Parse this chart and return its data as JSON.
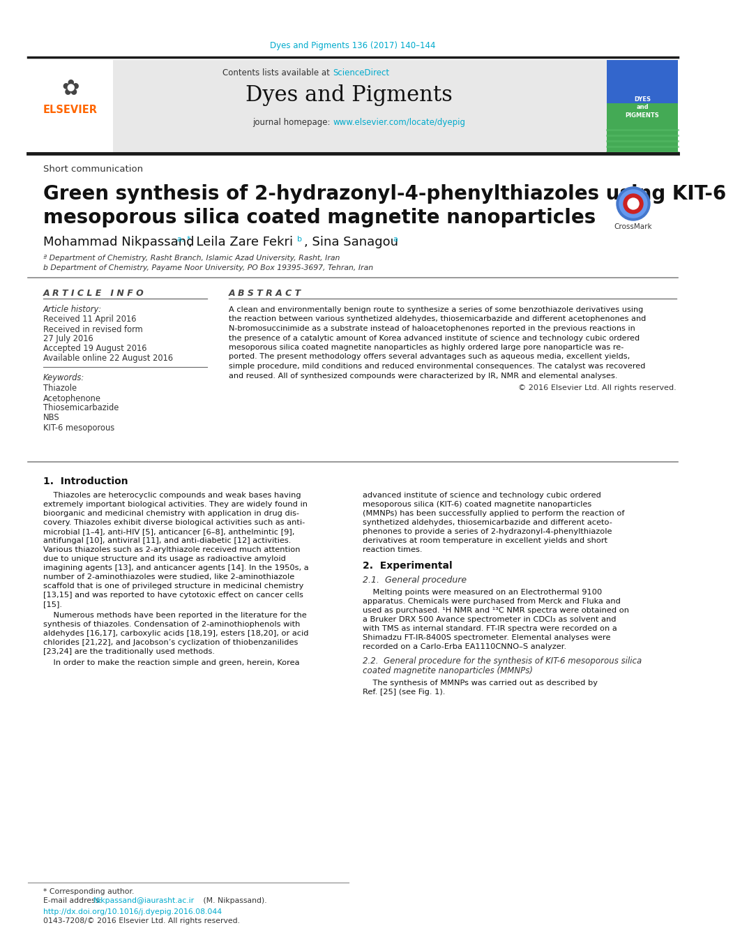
{
  "page_bg": "#ffffff",
  "header_journal_line": "Dyes and Pigments 136 (2017) 140–144",
  "header_journal_color": "#00aacc",
  "journal_name": "Dyes and Pigments",
  "contents_text": "Contents lists available at ",
  "sciencedirect_text": "ScienceDirect",
  "sciencedirect_color": "#00aacc",
  "homepage_text": "journal homepage: ",
  "homepage_url": "www.elsevier.com/locate/dyepig",
  "homepage_url_color": "#00aacc",
  "section_type": "Short communication",
  "article_title_line1": "Green synthesis of 2-hydrazonyl-4-phenylthiazoles using KIT-6",
  "article_title_line2": "mesoporous silica coated magnetite nanoparticles",
  "affiliation_a": "ª Department of Chemistry, Rasht Branch, Islamic Azad University, Rasht, Iran",
  "affiliation_b": "b Department of Chemistry, Payame Noor University, PO Box 19395-3697, Tehran, Iran",
  "article_info_header": "A R T I C L E   I N F O",
  "abstract_header": "A B S T R A C T",
  "article_history_label": "Article history:",
  "received_1": "Received 11 April 2016",
  "received_revised": "Received in revised form",
  "revised_date": "27 July 2016",
  "accepted": "Accepted 19 August 2016",
  "available": "Available online 22 August 2016",
  "keywords_label": "Keywords:",
  "keywords": [
    "Thiazole",
    "Acetophenone",
    "Thiosemicarbazide",
    "NBS",
    "KIT-6 mesoporous"
  ],
  "copyright": "© 2016 Elsevier Ltd. All rights reserved.",
  "intro_header": "1.  Introduction",
  "experimental_header": "2.  Experimental",
  "general_proc_header": "2.1.  General procedure",
  "kit6_proc_header": "2.2.  General procedure for the synthesis of KIT-6 mesoporous silica",
  "kit6_proc_header2": "coated magnetite nanoparticles (MMNPs)",
  "kit6_proc_text1": "    The synthesis of MMNPs was carried out as described by",
  "kit6_proc_text2": "Ref. [25] (see Fig. 1).",
  "footer_corresponding": "* Corresponding author.",
  "footer_email_label": "E-mail address: ",
  "footer_email": "Nikpassand@iaurasht.ac.ir",
  "footer_email_color": "#00aacc",
  "footer_email_suffix": " (M. Nikpassand).",
  "footer_doi": "http://dx.doi.org/10.1016/j.dyepig.2016.08.044",
  "footer_doi_color": "#00aacc",
  "footer_copyright": "0143-7208/© 2016 Elsevier Ltd. All rights reserved.",
  "header_bg": "#e8e8e8",
  "thick_line_color": "#1a1a1a",
  "elsevier_color": "#ff6600",
  "link_color": "#00aacc",
  "abstract_lines": [
    "A clean and environmentally benign route to synthesize a series of some benzothiazole derivatives using",
    "the reaction between various synthetized aldehydes, thiosemicarbazide and different acetophenones and",
    "N-bromosuccinimide as a substrate instead of haloacetophenones reported in the previous reactions in",
    "the presence of a catalytic amount of Korea advanced institute of science and technology cubic ordered",
    "mesoporous silica coated magnetite nanoparticles as highly ordered large pore nanoparticle was re-",
    "ported. The present methodology offers several advantages such as aqueous media, excellent yields,",
    "simple procedure, mild conditions and reduced environmental consequences. The catalyst was recovered",
    "and reused. All of synthesized compounds were characterized by IR, NMR and elemental analyses."
  ],
  "intro_p1_lines": [
    "    Thiazoles are heterocyclic compounds and weak bases having",
    "extremely important biological activities. They are widely found in",
    "bioorganic and medicinal chemistry with application in drug dis-",
    "covery. Thiazoles exhibit diverse biological activities such as anti-",
    "microbial [1–4], anti-HIV [5], anticancer [6–8], anthelmintic [9],",
    "antifungal [10], antiviral [11], and anti-diabetic [12] activities.",
    "Various thiazoles such as 2-arylthiazole received much attention",
    "due to unique structure and its usage as radioactive amyloid",
    "imagining agents [13], and anticancer agents [14]. In the 1950s, a",
    "number of 2-aminothiazoles were studied, like 2-aminothiazole",
    "scaffold that is one of privileged structure in medicinal chemistry",
    "[13,15] and was reported to have cytotoxic effect on cancer cells",
    "[15]."
  ],
  "intro_p2_lines": [
    "    Numerous methods have been reported in the literature for the",
    "synthesis of thiazoles. Condensation of 2-aminothiophenols with",
    "aldehydes [16,17], carboxylic acids [18,19], esters [18,20], or acid",
    "chlorides [21,22], and Jacobson’s cyclization of thiobenzanilides",
    "[23,24] are the traditionally used methods."
  ],
  "intro_p3": "    In order to make the reaction simple and green, herein, Korea",
  "right_intro_lines": [
    "advanced institute of science and technology cubic ordered",
    "mesoporous silica (KIT-6) coated magnetite nanoparticles",
    "(MMNPs) has been successfully applied to perform the reaction of",
    "synthetized aldehydes, thiosemicarbazide and different aceto-",
    "phenones to provide a series of 2-hydrazonyl-4-phenylthiazole",
    "derivatives at room temperature in excellent yields and short",
    "reaction times."
  ],
  "general_proc_lines": [
    "    Melting points were measured on an Electrothermal 9100",
    "apparatus. Chemicals were purchased from Merck and Fluka and",
    "used as purchased. ¹H NMR and ¹³C NMR spectra were obtained on",
    "a Bruker DRX 500 Avance spectrometer in CDCl₃ as solvent and",
    "with TMS as internal standard. FT-IR spectra were recorded on a",
    "Shimadzu FT-IR-8400S spectrometer. Elemental analyses were",
    "recorded on a Carlo-Erba EA1110CNNO–S analyzer."
  ]
}
